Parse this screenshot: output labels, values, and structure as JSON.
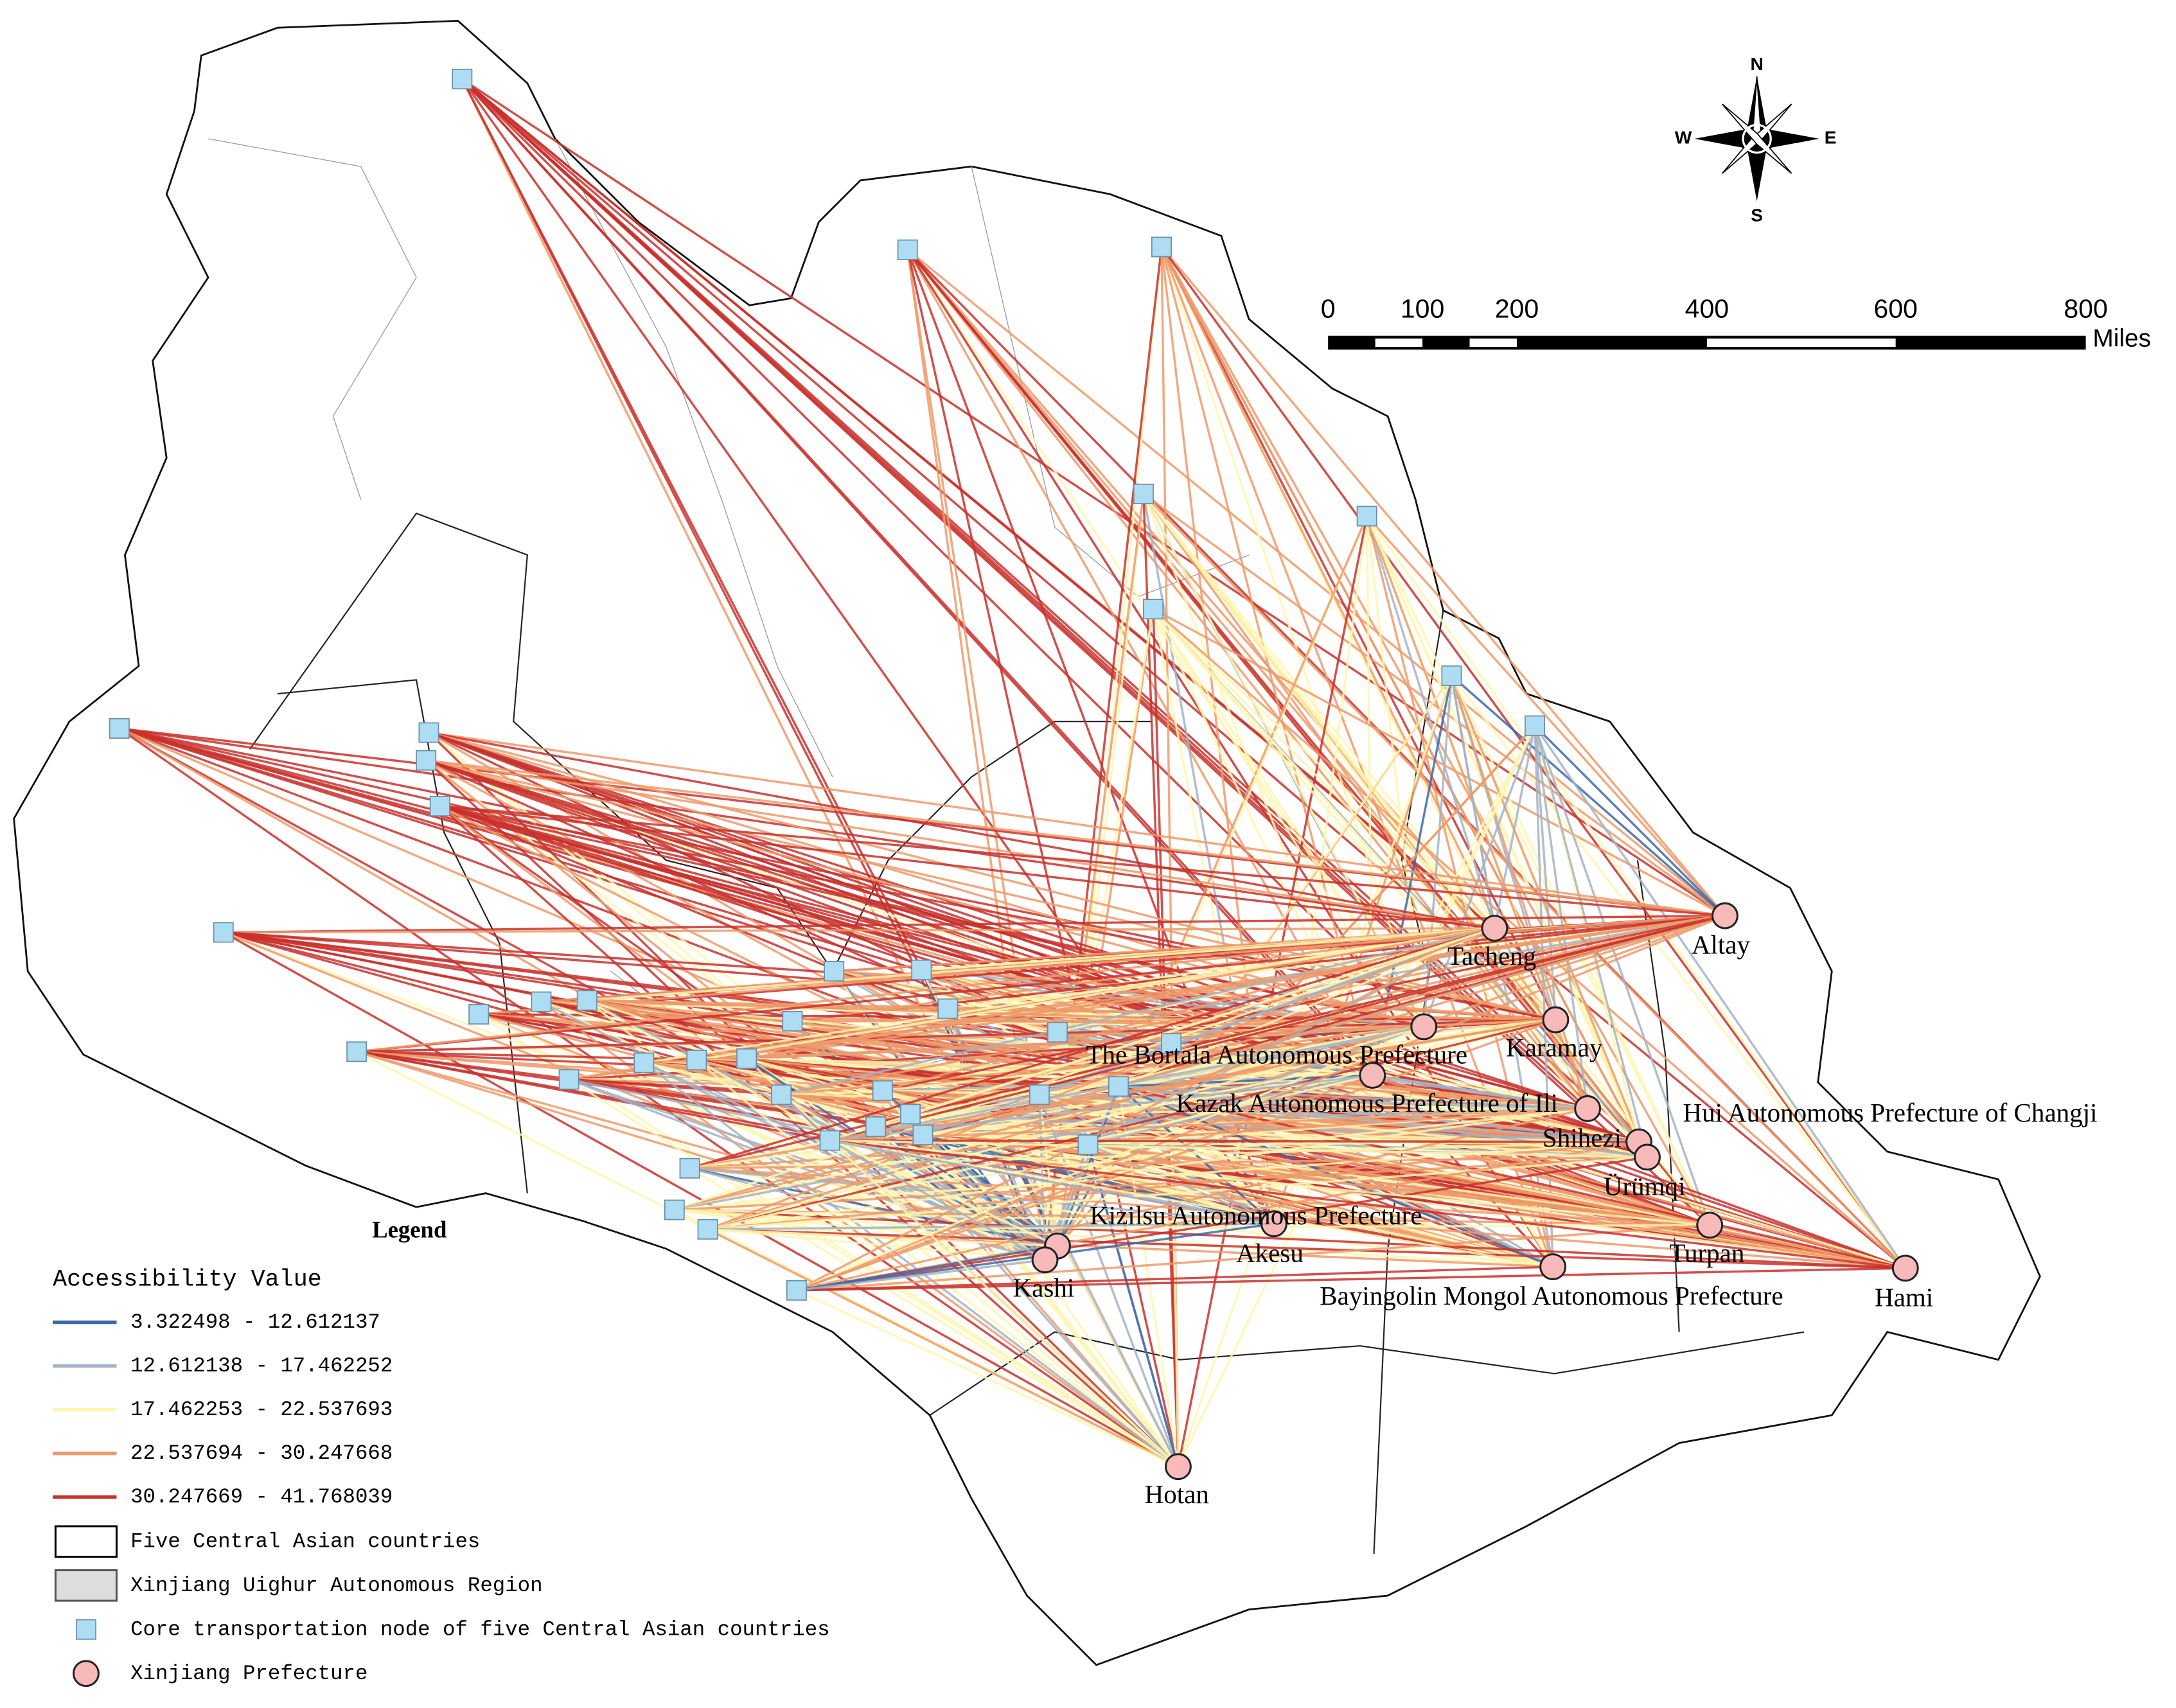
{
  "legend": {
    "title": "Legend",
    "subtitle": "Accessibility Value",
    "classes": [
      {
        "label": "3.322498 - 12.612137",
        "color": "#3e67a8"
      },
      {
        "label": "12.612138 - 17.462252",
        "color": "#a3b3c4"
      },
      {
        "label": "17.462253 - 22.537693",
        "color": "#fff6b0"
      },
      {
        "label": "22.537694 - 30.247668",
        "color": "#ee9a6a"
      },
      {
        "label": "30.247669 - 41.768039",
        "color": "#c9302b"
      }
    ],
    "items": [
      "Five Central Asian countries",
      "Xinjiang Uighur Autonomous Region",
      "Core transportation node of five Central Asian countries",
      "Xinjiang Prefecture"
    ]
  },
  "compass": {
    "n": "N",
    "s": "S",
    "w": "W",
    "e": "E"
  },
  "scale_bar": {
    "labels": [
      "0",
      "100",
      "200",
      "400",
      "600",
      "800"
    ],
    "unit": "Miles"
  },
  "prefectures": [
    "Altay",
    "Tacheng",
    "The Bortala Autonomous Prefecture",
    "Karamay",
    "Kazak Autonomous Prefecture of Ili",
    "Shihezi",
    "Hui Autonomous Prefecture of Changji",
    "Ürümqi",
    "Turpan",
    "Hami",
    "Bayingolin Mongol Autonomous Prefecture",
    "Akesu",
    "Kizilsu Autonomous Prefecture",
    "Kashi",
    "Hotan"
  ]
}
